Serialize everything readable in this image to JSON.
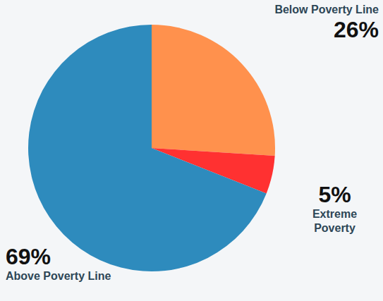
{
  "chart_data": {
    "type": "pie",
    "categories": [
      "Below Poverty Line",
      "Extreme Poverty",
      "Above Poverty Line"
    ],
    "values": [
      26,
      5,
      69
    ],
    "value_labels": [
      "26%",
      "5%",
      "69%"
    ],
    "colors": [
      "#ff914d",
      "#ff3131",
      "#2e8bbd"
    ],
    "data_labels": true
  }
}
